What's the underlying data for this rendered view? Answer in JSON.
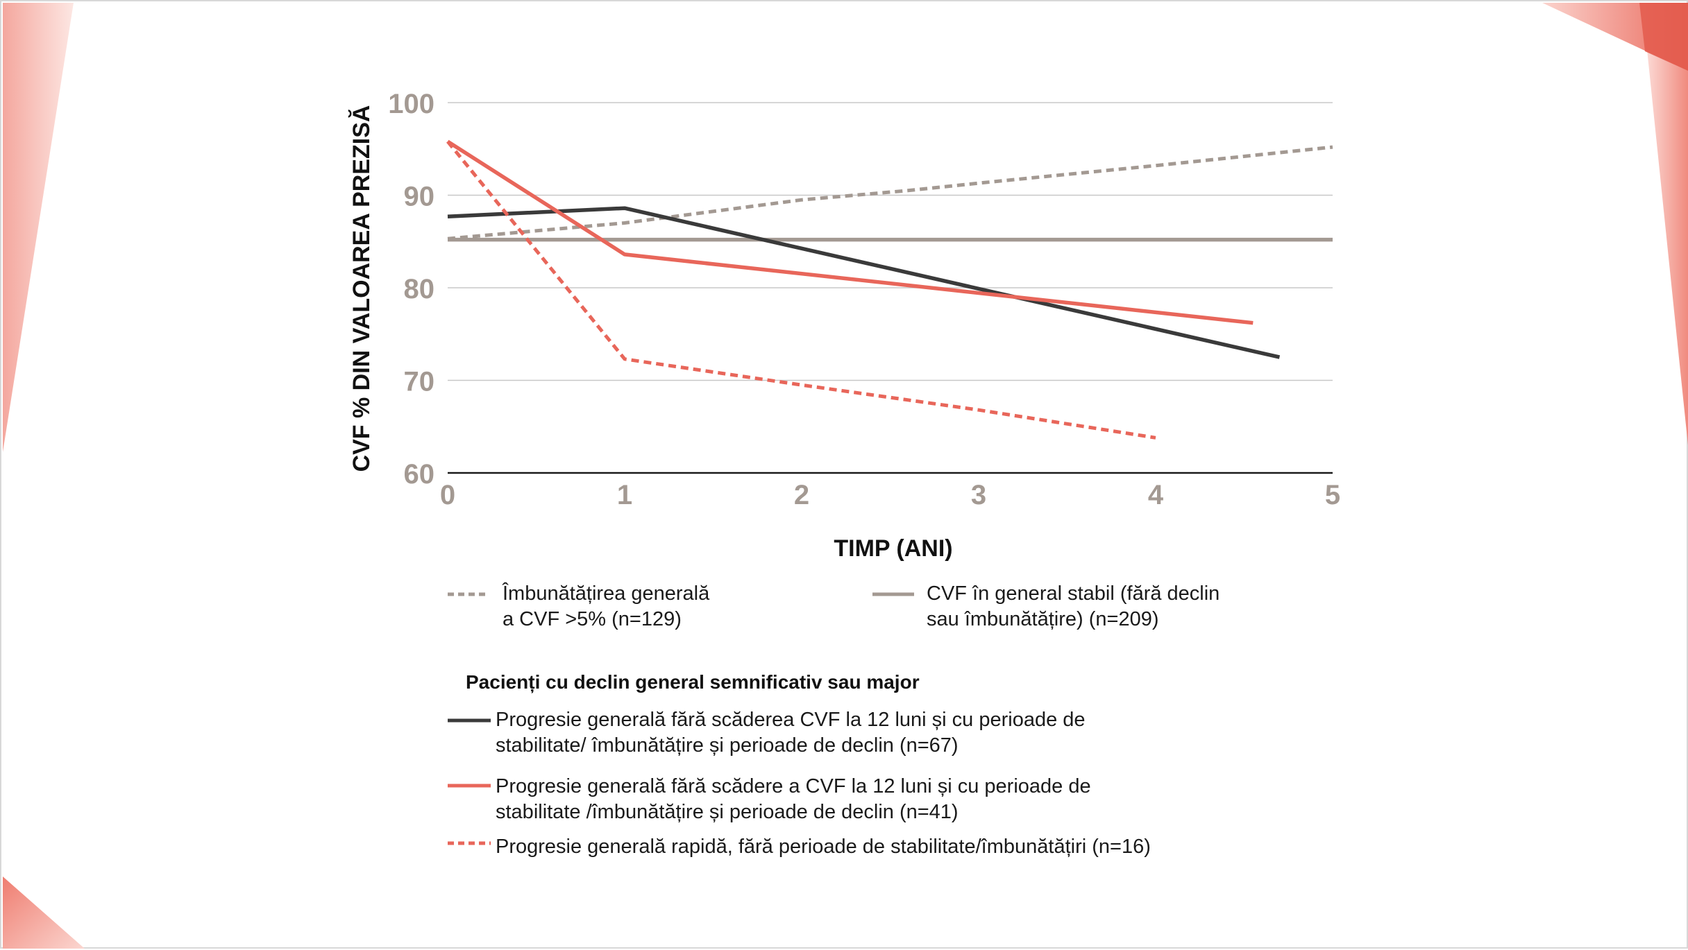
{
  "colors": {
    "accent": "#e8665a",
    "dark": "#3a3a3a",
    "gray": "#a39992",
    "gridline": "#c8c8c8"
  },
  "chart_data": {
    "type": "line",
    "title": "",
    "xlabel": "TIMP (ANI)",
    "ylabel": "CVF % DIN VALOAREA PREZISĂ",
    "xlim": [
      0,
      5
    ],
    "ylim": [
      60,
      100
    ],
    "x_ticks": [
      "0",
      "1",
      "2",
      "3",
      "4",
      "5"
    ],
    "y_ticks": [
      "60",
      "70",
      "80",
      "90",
      "100"
    ],
    "grid": true,
    "legend_heading": "Pacienți cu declin general semnificativ sau major",
    "series": [
      {
        "id": "improvement",
        "name_lines": [
          "Îmbunătățirea generală",
          "a CVF >5% (n=129)"
        ],
        "color": "#a39992",
        "style": "dashed",
        "x": [
          0,
          1,
          2,
          2.6,
          3,
          4,
          5
        ],
        "y": [
          85.3,
          87,
          89.5,
          90.5,
          91.3,
          93.2,
          95.2
        ]
      },
      {
        "id": "stable",
        "name_lines": [
          "CVF în general stabil (fără declin",
          "sau îmbunătățire) (n=209)"
        ],
        "color": "#a39992",
        "style": "solid",
        "x": [
          0,
          5
        ],
        "y": [
          85.2,
          85.2
        ]
      },
      {
        "id": "progression-dark",
        "name_lines": [
          "Progresie generală fără scăderea CVF la 12 luni și cu perioade de",
          "stabilitate/ îmbunătățire și perioade de declin (n=67)"
        ],
        "color": "#3a3a3a",
        "style": "solid",
        "x": [
          0,
          1,
          4.7
        ],
        "y": [
          87.7,
          88.6,
          72.5
        ]
      },
      {
        "id": "progression-red",
        "name_lines": [
          "Progresie generală fără scădere a CVF la 12 luni și cu perioade de",
          "stabilitate /îmbunătățire și perioade de declin (n=41)"
        ],
        "color": "#e8665a",
        "style": "solid",
        "x": [
          0,
          1,
          4.55
        ],
        "y": [
          95.8,
          83.6,
          76.2
        ]
      },
      {
        "id": "rapid",
        "name_lines": [
          "Progresie generală rapidă, fără perioade de stabilitate/îmbunătățiri (n=16)"
        ],
        "color": "#e8665a",
        "style": "dashed",
        "x": [
          0,
          1,
          2,
          3,
          4
        ],
        "y": [
          95.8,
          72.3,
          69.5,
          66.8,
          63.8
        ]
      }
    ]
  }
}
